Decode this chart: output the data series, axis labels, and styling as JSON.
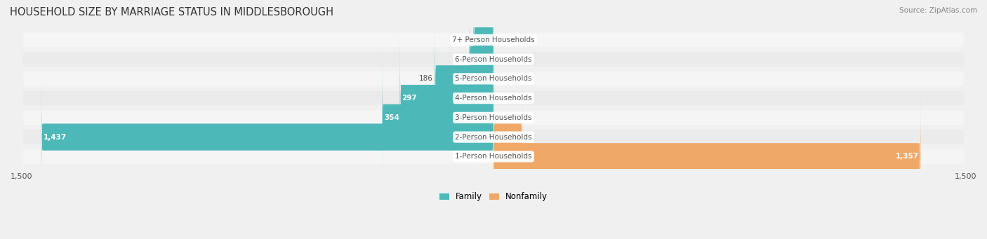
{
  "title": "HOUSEHOLD SIZE BY MARRIAGE STATUS IN MIDDLESBOROUGH",
  "source": "Source: ZipAtlas.com",
  "categories": [
    "7+ Person Households",
    "6-Person Households",
    "5-Person Households",
    "4-Person Households",
    "3-Person Households",
    "2-Person Households",
    "1-Person Households"
  ],
  "family_values": [
    63,
    77,
    186,
    297,
    354,
    1437,
    0
  ],
  "nonfamily_values": [
    0,
    0,
    0,
    0,
    0,
    91,
    1357
  ],
  "family_color": "#4db8b8",
  "nonfamily_color": "#f0a868",
  "axis_limit": 1500,
  "bg_color": "#f0f0f0",
  "bar_bg_color": "#e0e0e0",
  "row_bg_colors": [
    "#f5f5f5",
    "#ebebeb"
  ],
  "label_color": "#555555",
  "title_color": "#333333",
  "axis_label_color": "#555555"
}
